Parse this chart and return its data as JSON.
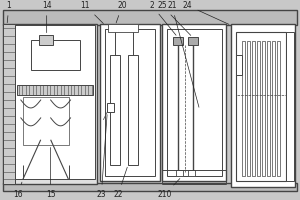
{
  "bg_color": "#e8e8e8",
  "line_color": "#444444",
  "lw": 0.7,
  "fig_bg": "#c8c8c8",
  "white": "#ffffff",
  "gray_light": "#d0d0d0",
  "gray_med": "#b0b0b0"
}
